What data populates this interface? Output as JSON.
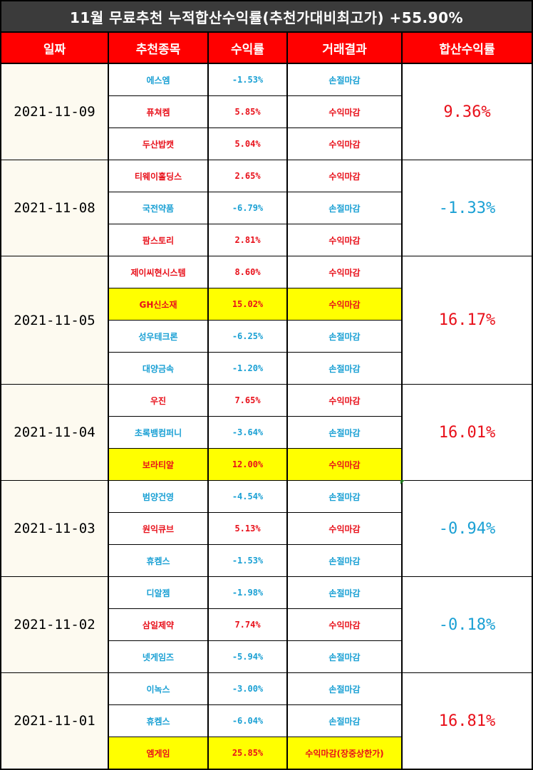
{
  "title": "11월 무료추천 누적합산수익률(추천가대비최고가) +55.90%",
  "headers": [
    "일짜",
    "추천종목",
    "수익률",
    "거래결과",
    "합산수익률"
  ],
  "colors": {
    "gain": "#e8101a",
    "loss": "#1aa0d4",
    "header_bg": "#ff0000",
    "title_bg": "#3b3b3b",
    "highlight": "#ffff00"
  },
  "groups": [
    {
      "date": "2021-11-09",
      "total": "9.36%",
      "total_dir": "gain",
      "items": [
        {
          "name": "에스엠",
          "ret": "-1.53%",
          "result": "손절마감",
          "dir": "loss",
          "hl": false
        },
        {
          "name": "퓨쳐켐",
          "ret": "5.85%",
          "result": "수익마감",
          "dir": "gain",
          "hl": false
        },
        {
          "name": "두산밥캣",
          "ret": "5.04%",
          "result": "수익마감",
          "dir": "gain",
          "hl": false
        }
      ]
    },
    {
      "date": "2021-11-08",
      "total": "-1.33%",
      "total_dir": "loss",
      "items": [
        {
          "name": "티웨이홀딩스",
          "ret": "2.65%",
          "result": "수익마감",
          "dir": "gain",
          "hl": false
        },
        {
          "name": "국전약품",
          "ret": "-6.79%",
          "result": "손절마감",
          "dir": "loss",
          "hl": false
        },
        {
          "name": "팜스토리",
          "ret": "2.81%",
          "result": "수익마감",
          "dir": "gain",
          "hl": false
        }
      ]
    },
    {
      "date": "2021-11-05",
      "total": "16.17%",
      "total_dir": "gain",
      "items": [
        {
          "name": "제이씨현시스템",
          "ret": "8.60%",
          "result": "수익마감",
          "dir": "gain",
          "hl": false
        },
        {
          "name": "GH신소재",
          "ret": "15.02%",
          "result": "수익마감",
          "dir": "gain",
          "hl": true
        },
        {
          "name": "성우테크론",
          "ret": "-6.25%",
          "result": "손절마감",
          "dir": "loss",
          "hl": false
        },
        {
          "name": "대양금속",
          "ret": "-1.20%",
          "result": "손절마감",
          "dir": "loss",
          "hl": false
        }
      ]
    },
    {
      "date": "2021-11-04",
      "total": "16.01%",
      "total_dir": "gain",
      "items": [
        {
          "name": "우진",
          "ret": "7.65%",
          "result": "수익마감",
          "dir": "gain",
          "hl": false
        },
        {
          "name": "초록뱀컴퍼니",
          "ret": "-3.64%",
          "result": "손절마감",
          "dir": "loss",
          "hl": false
        },
        {
          "name": "보라티알",
          "ret": "12.00%",
          "result": "수익마감",
          "dir": "gain",
          "hl": true
        }
      ]
    },
    {
      "date": "2021-11-03",
      "total": "-0.94%",
      "total_dir": "loss",
      "items": [
        {
          "name": "범양건영",
          "ret": "-4.54%",
          "result": "손절마감",
          "dir": "loss",
          "hl": false
        },
        {
          "name": "원익큐브",
          "ret": "5.13%",
          "result": "수익마감",
          "dir": "gain",
          "hl": false
        },
        {
          "name": "휴켐스",
          "ret": "-1.53%",
          "result": "손절마감",
          "dir": "loss",
          "hl": false
        }
      ]
    },
    {
      "date": "2021-11-02",
      "total": "-0.18%",
      "total_dir": "loss",
      "items": [
        {
          "name": "디알젬",
          "ret": "-1.98%",
          "result": "손절마감",
          "dir": "loss",
          "hl": false
        },
        {
          "name": "삼일제약",
          "ret": "7.74%",
          "result": "수익마감",
          "dir": "gain",
          "hl": false
        },
        {
          "name": "넷게임즈",
          "ret": "-5.94%",
          "result": "손절마감",
          "dir": "loss",
          "hl": false
        }
      ]
    },
    {
      "date": "2021-11-01",
      "total": "16.81%",
      "total_dir": "gain",
      "items": [
        {
          "name": "이녹스",
          "ret": "-3.00%",
          "result": "손절마감",
          "dir": "loss",
          "hl": false
        },
        {
          "name": "휴켐스",
          "ret": "-6.04%",
          "result": "손절마감",
          "dir": "loss",
          "hl": false
        },
        {
          "name": "엠게임",
          "ret": "25.85%",
          "result": "수익마감(장중상한가)",
          "dir": "gain",
          "hl": true
        }
      ]
    }
  ]
}
